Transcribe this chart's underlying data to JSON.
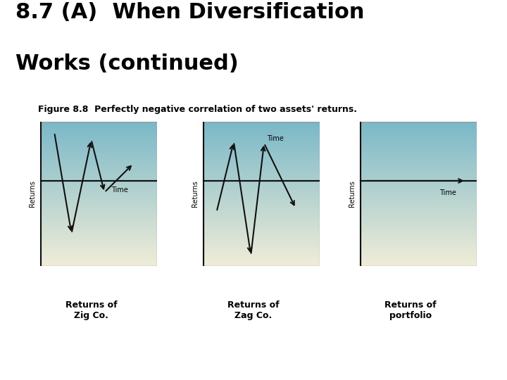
{
  "title_line1": "8.7 (A)  When Diversification",
  "title_line2": "Works (continued)",
  "subtitle": "Figure 8.8  Perfectly negative correlation of two assets' returns.",
  "title_fontsize": 22,
  "subtitle_fontsize": 9,
  "bg_color": "#ffffff",
  "grad_top": "#7ab8c8",
  "grad_bottom": "#f0edd8",
  "panel_labels": [
    "Returns of\nZig Co.",
    "Returns of\nZag Co.",
    "Returns of\nportfolio"
  ],
  "panel_label_fontsize": 9,
  "returns_label_fontsize": 7,
  "time_label_fontsize": 7,
  "arrow_color": "#111111",
  "axis_color": "#111111",
  "border_color": "#999999"
}
